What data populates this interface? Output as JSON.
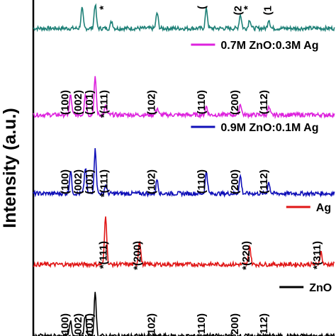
{
  "chart_data": {
    "type": "line",
    "title": "",
    "xlabel": "",
    "ylabel": "Intensity (a.u.)",
    "x_range": [
      25,
      80
    ],
    "grid": false,
    "legend_placement": "right of each trace",
    "series": [
      {
        "name": "",
        "color": "#1e8077",
        "baseline": 40,
        "peaks": [
          [
            33.9,
            28
          ],
          [
            36.3,
            34
          ],
          [
            39.3,
            10
          ],
          [
            47.6,
            22
          ],
          [
            56.6,
            28
          ],
          [
            62.8,
            20
          ],
          [
            64.5,
            13
          ],
          [
            68.0,
            13
          ]
        ],
        "annotations": [
          {
            "x": 38.4,
            "text": "*"
          },
          {
            "x": 56.4,
            "text": "("
          },
          {
            "x": 63.0,
            "text": "(2"
          },
          {
            "x": 64.7,
            "text": "*"
          },
          {
            "x": 68.4,
            "text": "(1"
          }
        ]
      },
      {
        "name": "0.7M ZnO:0.3M Ag",
        "color": "#dd22dd",
        "baseline": 162,
        "peaks": [
          [
            31.8,
            28
          ],
          [
            34.5,
            30
          ],
          [
            36.3,
            52
          ],
          [
            38.2,
            12
          ],
          [
            47.6,
            10
          ],
          [
            56.6,
            12
          ],
          [
            62.8,
            16
          ],
          [
            68.0,
            10
          ]
        ],
        "annotations": [
          {
            "x": 31.4,
            "text": "(100)"
          },
          {
            "x": 33.8,
            "text": "(002)"
          },
          {
            "x": 35.9,
            "text": "(101)"
          },
          {
            "x": 38.5,
            "text": "*(111)"
          },
          {
            "x": 47.2,
            "text": "(102)"
          },
          {
            "x": 56.3,
            "text": "(110)"
          },
          {
            "x": 62.4,
            "text": "(200)"
          },
          {
            "x": 67.7,
            "text": "(112)"
          }
        ]
      },
      {
        "name": "0.9M ZnO:0.1M Ag",
        "color": "#1010b8",
        "baseline": 273,
        "peaks": [
          [
            31.8,
            32
          ],
          [
            34.5,
            36
          ],
          [
            36.3,
            62
          ],
          [
            38.2,
            12
          ],
          [
            47.6,
            20
          ],
          [
            56.6,
            32
          ],
          [
            62.8,
            25
          ],
          [
            68.0,
            16
          ]
        ],
        "annotations": [
          {
            "x": 31.4,
            "text": "(100)"
          },
          {
            "x": 33.8,
            "text": "(002)"
          },
          {
            "x": 35.9,
            "text": "(101)"
          },
          {
            "x": 38.5,
            "text": "*(111)"
          },
          {
            "x": 47.2,
            "text": "(102)"
          },
          {
            "x": 56.3,
            "text": "(110)"
          },
          {
            "x": 62.4,
            "text": "(200)"
          },
          {
            "x": 67.7,
            "text": "(112)"
          }
        ]
      },
      {
        "name": "Ag",
        "color": "#e01616",
        "baseline": 373,
        "peaks": [
          [
            38.2,
            70
          ],
          [
            44.4,
            35
          ],
          [
            64.5,
            26
          ],
          [
            77.5,
            18
          ]
        ],
        "annotations": [
          {
            "x": 38.4,
            "text": "*(111)"
          },
          {
            "x": 44.6,
            "text": "*(200)"
          },
          {
            "x": 64.5,
            "text": "*(220)"
          },
          {
            "x": 77.4,
            "text": "*(311)"
          }
        ]
      },
      {
        "name": "ZnO",
        "color": "#000000",
        "baseline": 474,
        "peaks": [
          [
            31.8,
            20
          ],
          [
            34.5,
            30
          ],
          [
            36.3,
            60
          ]
        ],
        "annotations": [
          {
            "x": 31.4,
            "text": "(100)"
          },
          {
            "x": 33.8,
            "text": "(002)"
          },
          {
            "x": 35.9,
            "text": "(101)"
          },
          {
            "x": 47.2,
            "text": "(102)"
          },
          {
            "x": 56.3,
            "text": "(110)"
          },
          {
            "x": 62.4,
            "text": "(200)"
          },
          {
            "x": 67.7,
            "text": "(112)"
          }
        ]
      }
    ]
  }
}
